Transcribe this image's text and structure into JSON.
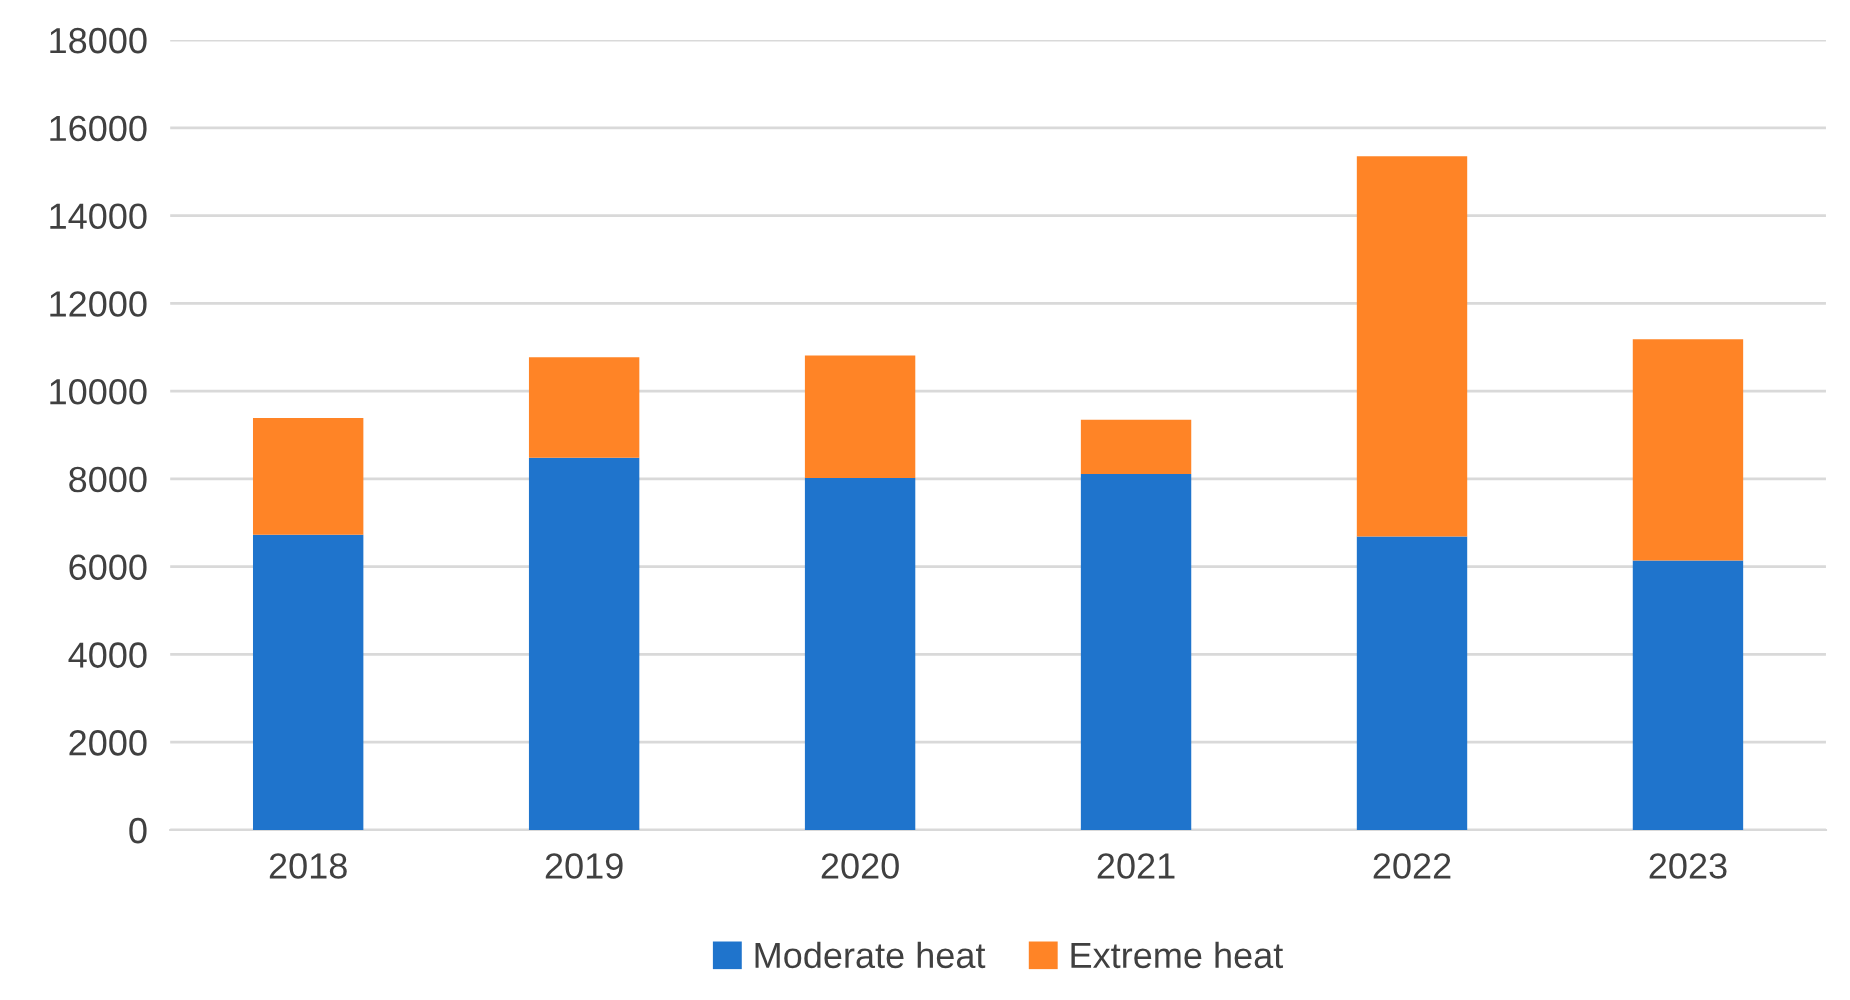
{
  "chart_data": {
    "type": "bar",
    "stacked": true,
    "categories": [
      "2018",
      "2019",
      "2020",
      "2021",
      "2022",
      "2023"
    ],
    "series": [
      {
        "name": "Moderate heat",
        "color": "#1f74cc",
        "values": [
          6730,
          8480,
          8020,
          8110,
          6690,
          6140
        ]
      },
      {
        "name": "Extreme heat",
        "color": "#ff8426",
        "values": [
          2660,
          2290,
          2790,
          1240,
          8660,
          5040
        ]
      }
    ],
    "ylim": [
      0,
      18000
    ],
    "yticks": [
      0,
      2000,
      4000,
      6000,
      8000,
      10000,
      12000,
      14000,
      16000,
      18000
    ],
    "grid": "y",
    "legend": "bottom"
  }
}
